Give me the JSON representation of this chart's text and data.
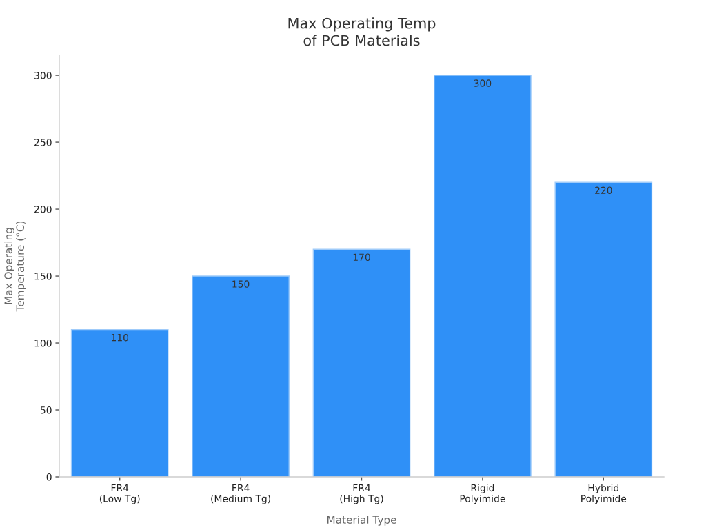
{
  "chart_data": {
    "type": "bar",
    "title": "Max Operating Temp\nof PCB Materials",
    "xlabel": "Material Type",
    "ylabel": "Max Operating\nTemperature (°C)",
    "categories": [
      "FR4\n(Low Tg)",
      "FR4\n(Medium Tg)",
      "FR4\n(High Tg)",
      "Rigid\nPolyimide",
      "Hybrid\nPolyimide"
    ],
    "values": [
      110,
      150,
      170,
      300,
      220
    ],
    "color": "#2f90f7",
    "ylim": [
      0,
      315
    ],
    "yticks": [
      0,
      50,
      100,
      150,
      200,
      250,
      300
    ],
    "data_labels": true,
    "grid": false,
    "legend": false
  }
}
